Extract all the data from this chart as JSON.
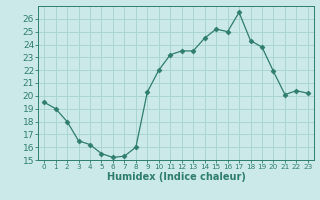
{
  "x": [
    0,
    1,
    2,
    3,
    4,
    5,
    6,
    7,
    8,
    9,
    10,
    11,
    12,
    13,
    14,
    15,
    16,
    17,
    18,
    19,
    20,
    21,
    22,
    23
  ],
  "y": [
    19.5,
    19.0,
    18.0,
    16.5,
    16.2,
    15.5,
    15.2,
    15.3,
    16.0,
    20.3,
    22.0,
    23.2,
    23.5,
    23.5,
    24.5,
    25.2,
    25.0,
    26.5,
    24.3,
    23.8,
    21.9,
    20.1,
    20.4,
    20.2
  ],
  "xlim": [
    -0.5,
    23.5
  ],
  "ylim": [
    15,
    27
  ],
  "xticks": [
    0,
    1,
    2,
    3,
    4,
    5,
    6,
    7,
    8,
    9,
    10,
    11,
    12,
    13,
    14,
    15,
    16,
    17,
    18,
    19,
    20,
    21,
    22,
    23
  ],
  "yticks": [
    15,
    16,
    17,
    18,
    19,
    20,
    21,
    22,
    23,
    24,
    25,
    26
  ],
  "xlabel": "Humidex (Indice chaleur)",
  "line_color": "#2e7d6e",
  "marker": "D",
  "marker_size": 2.5,
  "background_color": "#cce9e9",
  "grid_color": "#aad4d4",
  "label_fontsize": 7,
  "tick_fontsize": 6.5,
  "xtick_fontsize": 5.2
}
